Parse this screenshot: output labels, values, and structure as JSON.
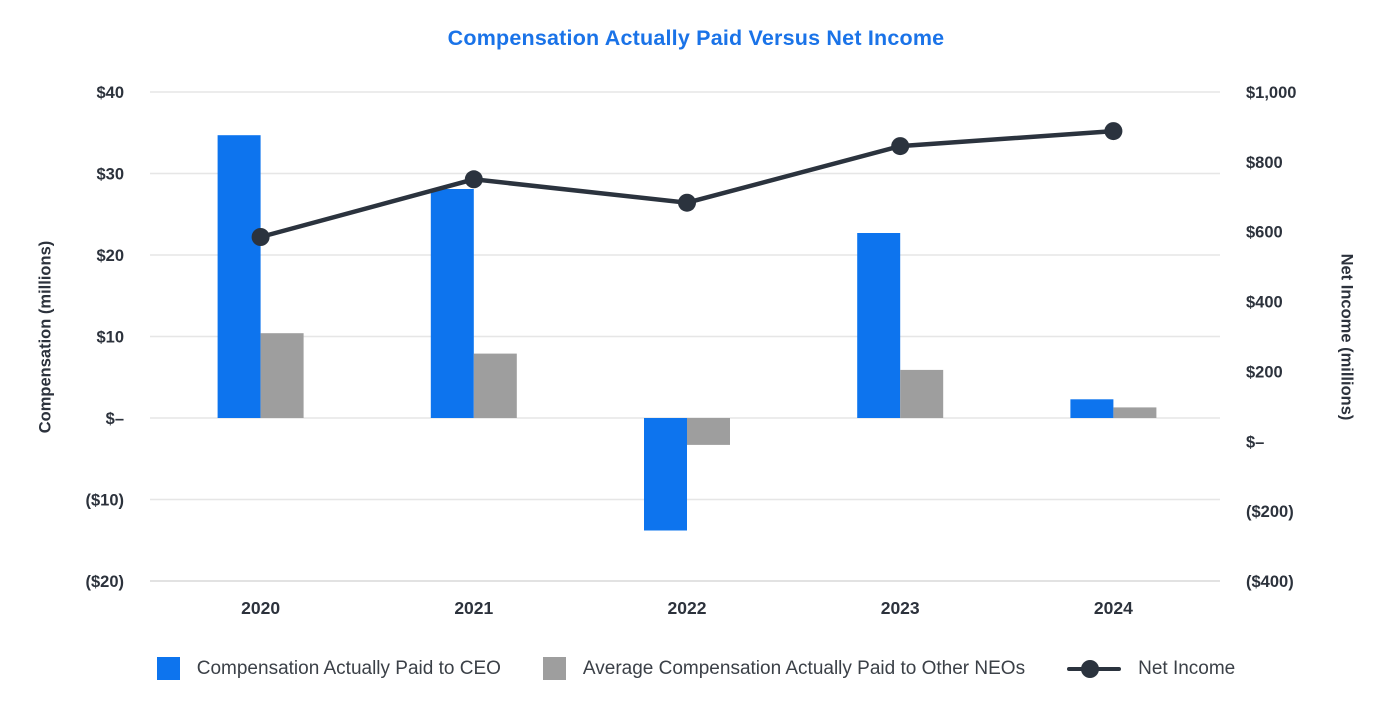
{
  "chart_data": {
    "type": "combo-bar-line",
    "title": "Compensation Actually Paid Versus Net Income",
    "title_color": "#1a73e8",
    "categories": [
      "2020",
      "2021",
      "2022",
      "2023",
      "2024"
    ],
    "series": [
      {
        "name": "Compensation Actually Paid to CEO",
        "type": "bar",
        "axis": "left",
        "color": "#0d74ee",
        "values": [
          34.7,
          28.1,
          -13.8,
          22.7,
          2.3
        ]
      },
      {
        "name": "Average Compensation Actually Paid to Other NEOs",
        "type": "bar",
        "axis": "left",
        "color": "#9e9e9e",
        "values": [
          10.4,
          7.9,
          -3.3,
          5.9,
          1.3
        ]
      },
      {
        "name": "Net Income",
        "type": "line",
        "axis": "right",
        "color": "#2b333e",
        "values": [
          585,
          750,
          683,
          845,
          888
        ]
      }
    ],
    "left_axis": {
      "label": "Compensation (millions)",
      "min": -20,
      "max": 40,
      "tick_values": [
        40,
        30,
        20,
        10,
        0,
        -10,
        -20
      ],
      "tick_labels": [
        "$40",
        "$30",
        "$20",
        "$10",
        "$–",
        "($10)",
        "($20)"
      ]
    },
    "right_axis": {
      "label": "Net Income (millions)",
      "min": -400,
      "max": 1000,
      "tick_values": [
        1000,
        800,
        600,
        400,
        200,
        0,
        -200,
        -400
      ],
      "tick_labels": [
        "$1,000",
        "$800",
        "$600",
        "$400",
        "$200",
        "$–",
        "($200)",
        "($400)"
      ]
    },
    "legend": {
      "position": "bottom",
      "entries": [
        "Compensation Actually Paid to CEO",
        "Average Compensation Actually Paid to Other NEOs",
        "Net Income"
      ]
    },
    "grid": {
      "horizontal": true,
      "color": "#e6e6e6",
      "bottom_line_color": "#d9d9d9"
    }
  }
}
